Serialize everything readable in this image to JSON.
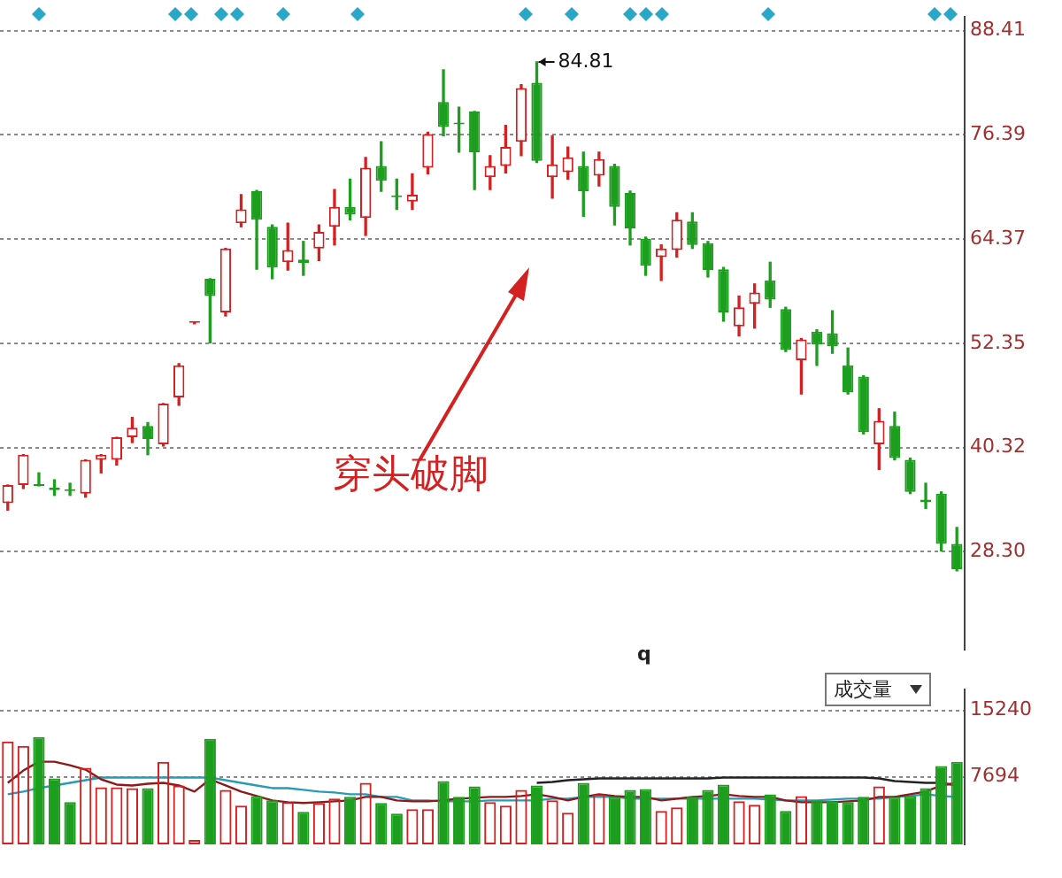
{
  "chart_data": [
    {
      "type": "candlestick",
      "categories": [
        null,
        null,
        null,
        null,
        null,
        null,
        null,
        null,
        null,
        null,
        null,
        null,
        null,
        null,
        null,
        null,
        null,
        null,
        null,
        null,
        null,
        null,
        null,
        null,
        null,
        null,
        null,
        null,
        null,
        null,
        null,
        null,
        null,
        null,
        null,
        null,
        null,
        null,
        null,
        null,
        null,
        null,
        null,
        null,
        null,
        null,
        null,
        null,
        null,
        null,
        null,
        null,
        null,
        null,
        null,
        null,
        null,
        null,
        null,
        null,
        null,
        null
      ],
      "ohlc": [
        [
          33.9,
          36.0,
          33.1,
          36.0
        ],
        [
          36.0,
          39.5,
          35.6,
          39.5
        ],
        [
          36.0,
          37.4,
          35.9,
          35.9
        ],
        [
          35.7,
          36.6,
          34.8,
          35.4
        ],
        [
          35.4,
          36.2,
          34.8,
          35.3
        ],
        [
          35.0,
          38.9,
          34.6,
          38.9
        ],
        [
          38.9,
          39.5,
          37.4,
          39.5
        ],
        [
          38.9,
          41.5,
          38.3,
          41.5
        ],
        [
          41.5,
          43.8,
          40.9,
          42.6
        ],
        [
          42.8,
          43.2,
          39.5,
          41.3
        ],
        [
          40.7,
          45.4,
          40.5,
          45.4
        ],
        [
          46.1,
          50.0,
          45.2,
          49.8
        ],
        [
          54.7,
          54.8,
          54.6,
          54.7
        ],
        [
          59.8,
          59.8,
          52.4,
          57.8
        ],
        [
          55.9,
          63.3,
          55.5,
          63.3
        ],
        [
          66.2,
          69.5,
          65.8,
          67.8
        ],
        [
          69.9,
          70.0,
          60.9,
          66.6
        ],
        [
          65.8,
          66.0,
          59.8,
          61.1
        ],
        [
          61.7,
          66.2,
          60.8,
          63.1
        ],
        [
          62.0,
          64.1,
          60.2,
          61.6
        ],
        [
          63.3,
          66.0,
          61.9,
          65.2
        ],
        [
          65.8,
          70.1,
          63.7,
          68.1
        ],
        [
          68.1,
          71.3,
          66.6,
          67.2
        ],
        [
          66.8,
          73.8,
          64.8,
          72.6
        ],
        [
          72.8,
          75.6,
          69.9,
          71.1
        ],
        [
          69.4,
          71.3,
          67.8,
          69.2
        ],
        [
          68.7,
          71.9,
          67.8,
          69.5
        ],
        [
          72.6,
          76.7,
          71.9,
          76.5
        ],
        [
          80.2,
          83.9,
          76.3,
          77.3
        ],
        [
          77.8,
          79.6,
          74.4,
          77.6
        ],
        [
          79.1,
          79.1,
          70.1,
          74.4
        ],
        [
          71.5,
          74.0,
          70.1,
          72.8
        ],
        [
          72.8,
          77.5,
          72.0,
          75.0
        ],
        [
          75.6,
          82.2,
          74.0,
          81.8
        ],
        [
          82.4,
          84.81,
          73.2,
          73.4
        ],
        [
          71.5,
          76.3,
          69.1,
          73.0
        ],
        [
          72.1,
          75.0,
          71.3,
          73.8
        ],
        [
          72.8,
          74.4,
          67.0,
          69.9
        ],
        [
          71.7,
          74.4,
          70.5,
          73.6
        ],
        [
          72.8,
          73.0,
          66.0,
          68.1
        ],
        [
          69.7,
          69.9,
          63.7,
          65.6
        ],
        [
          64.4,
          64.6,
          60.2,
          61.3
        ],
        [
          62.3,
          63.7,
          59.6,
          63.3
        ],
        [
          63.1,
          67.4,
          62.3,
          66.6
        ],
        [
          66.4,
          67.4,
          63.3,
          63.7
        ],
        [
          63.9,
          64.1,
          60.0,
          60.8
        ],
        [
          60.9,
          61.1,
          54.9,
          55.9
        ],
        [
          54.3,
          57.8,
          53.2,
          56.5
        ],
        [
          56.9,
          59.2,
          54.1,
          58.2
        ],
        [
          59.6,
          61.7,
          56.5,
          57.4
        ],
        [
          56.3,
          56.5,
          51.4,
          51.6
        ],
        [
          50.4,
          52.9,
          46.5,
          52.8
        ],
        [
          53.7,
          53.9,
          49.8,
          52.2
        ],
        [
          53.5,
          56.1,
          51.2,
          52.0
        ],
        [
          49.8,
          51.8,
          46.5,
          46.7
        ],
        [
          48.5,
          48.6,
          41.9,
          42.1
        ],
        [
          40.7,
          44.8,
          37.8,
          43.4
        ],
        [
          42.8,
          44.4,
          38.9,
          39.1
        ],
        [
          38.9,
          39.1,
          35.0,
          35.2
        ],
        [
          34.3,
          36.2,
          33.3,
          34.0
        ],
        [
          35.0,
          35.2,
          28.4,
          29.2
        ],
        [
          29.2,
          31.1,
          26.1,
          26.3
        ]
      ],
      "colors": [
        "#d42020",
        "#d42020",
        "#1e9e1e",
        "#1e9e1e",
        "#1e9e1e",
        "#d42020",
        "#d42020",
        "#d42020",
        "#d42020",
        "#1e9e1e",
        "#d42020",
        "#d42020",
        "#d42020",
        "#1e9e1e",
        "#d42020",
        "#d42020",
        "#1e9e1e",
        "#1e9e1e",
        "#d42020",
        "#1e9e1e",
        "#d42020",
        "#d42020",
        "#1e9e1e",
        "#d42020",
        "#1e9e1e",
        "#1e9e1e",
        "#d42020",
        "#d42020",
        "#1e9e1e",
        "#1e9e1e",
        "#1e9e1e",
        "#d42020",
        "#d42020",
        "#d42020",
        "#1e9e1e",
        "#d42020",
        "#d42020",
        "#1e9e1e",
        "#d42020",
        "#1e9e1e",
        "#1e9e1e",
        "#1e9e1e",
        "#d42020",
        "#d42020",
        "#1e9e1e",
        "#1e9e1e",
        "#1e9e1e",
        "#d42020",
        "#d42020",
        "#1e9e1e",
        "#1e9e1e",
        "#d42020",
        "#1e9e1e",
        "#1e9e1e",
        "#1e9e1e",
        "#1e9e1e",
        "#d42020",
        "#1e9e1e",
        "#1e9e1e",
        "#1e9e1e",
        "#1e9e1e",
        "#1e9e1e"
      ],
      "ylim": [
        17,
        90
      ],
      "yticks": [
        {
          "value": 28.3,
          "label": "28.30"
        },
        40.32,
        52.35,
        64.37,
        76.39,
        88.41
      ],
      "grid": "y",
      "tick_labels": "y",
      "annotations": [
        "84.81",
        "穿头破脚",
        "q"
      ]
    },
    {
      "type": "bar",
      "title": "成交量",
      "categories": [
        null,
        null,
        null,
        null,
        null,
        null,
        null,
        null,
        null,
        null,
        null,
        null,
        null,
        null,
        null,
        null,
        null,
        null,
        null,
        null,
        null,
        null,
        null,
        null,
        null,
        null,
        null,
        null,
        null,
        null,
        null,
        null,
        null,
        null,
        null,
        null,
        null,
        null,
        null,
        null,
        null,
        null,
        null,
        null,
        null,
        null,
        null,
        null,
        null,
        null,
        null,
        null,
        null,
        null,
        null,
        null,
        null,
        null,
        null,
        null,
        null,
        null
      ],
      "series": [
        {
          "values": [
            11700,
            11200,
            12200,
            7500,
            4800,
            8700,
            6500,
            6500,
            6400,
            6400,
            9400,
            6700,
            500,
            12000,
            6200,
            4400,
            5500,
            5000,
            4800,
            3700,
            4700,
            5200,
            5400,
            7000,
            4700,
            3500,
            4000,
            4000,
            7200,
            5400,
            6600,
            4800,
            4400,
            6200,
            6700,
            5000,
            3600,
            7000,
            5700,
            5400,
            6200,
            6300,
            3800,
            4200,
            5400,
            6200,
            6800,
            4900,
            4500,
            5700,
            3800,
            5500,
            5000,
            4900,
            4800,
            5400,
            6600,
            5400,
            5500,
            6400,
            8900,
            9400
          ],
          "colors": [
            "#d42020",
            "#d42020",
            "#1e9e1e",
            "#1e9e1e",
            "#1e9e1e",
            "#d42020",
            "#d42020",
            "#d42020",
            "#d42020",
            "#1e9e1e",
            "#d42020",
            "#d42020",
            "#d42020",
            "#1e9e1e",
            "#d42020",
            "#d42020",
            "#1e9e1e",
            "#1e9e1e",
            "#d42020",
            "#1e9e1e",
            "#d42020",
            "#d42020",
            "#1e9e1e",
            "#d42020",
            "#1e9e1e",
            "#1e9e1e",
            "#d42020",
            "#d42020",
            "#1e9e1e",
            "#1e9e1e",
            "#1e9e1e",
            "#d42020",
            "#d42020",
            "#d42020",
            "#1e9e1e",
            "#d42020",
            "#d42020",
            "#1e9e1e",
            "#d42020",
            "#1e9e1e",
            "#1e9e1e",
            "#1e9e1e",
            "#d42020",
            "#d42020",
            "#1e9e1e",
            "#1e9e1e",
            "#1e9e1e",
            "#d42020",
            "#d42020",
            "#1e9e1e",
            "#1e9e1e",
            "#d42020",
            "#1e9e1e",
            "#1e9e1e",
            "#1e9e1e",
            "#1e9e1e",
            "#d42020",
            "#1e9e1e",
            "#1e9e1e",
            "#1e9e1e",
            "#1e9e1e",
            "#1e9e1e"
          ]
        },
        {
          "type": "line",
          "color": "#8b1a1a",
          "values": [
            7000,
            8400,
            9400,
            9400,
            9000,
            8500,
            7400,
            6800,
            6700,
            6900,
            7000,
            6700,
            6000,
            7400,
            6700,
            6000,
            5500,
            5000,
            4800,
            4700,
            4800,
            4900,
            5000,
            5400,
            5400,
            5000,
            4900,
            4900,
            5000,
            5200,
            5300,
            5400,
            5400,
            5500,
            5700,
            5400,
            5000,
            5400,
            5700,
            5500,
            5400,
            5400,
            5000,
            5200,
            5400,
            5500,
            5700,
            5500,
            5400,
            5400,
            5000,
            4800,
            4800,
            4800,
            4900,
            5000,
            5400,
            5400,
            5700,
            6000,
            6700,
            7000
          ]
        },
        {
          "type": "line",
          "color": "#2a9bb5",
          "values": [
            5700,
            6000,
            6400,
            6700,
            7000,
            7300,
            7600,
            7600,
            7600,
            7600,
            7600,
            7600,
            7600,
            7600,
            7300,
            7000,
            6700,
            6400,
            6400,
            6200,
            6000,
            5900,
            5700,
            5700,
            5400,
            5400,
            5000,
            5000,
            4900,
            4900,
            4900,
            5000,
            5000,
            5000,
            5000,
            5200,
            5200,
            5400,
            5400,
            5400,
            5200,
            5200,
            5200,
            5200,
            5200,
            5200,
            5200,
            5200,
            5200,
            5100,
            5000,
            5000,
            5000,
            5100,
            5200,
            5200,
            5200,
            5400,
            5500,
            5700,
            5500,
            5400
          ]
        },
        {
          "type": "line",
          "color": "#222222",
          "values": [
            null,
            null,
            null,
            null,
            null,
            null,
            null,
            null,
            null,
            null,
            null,
            null,
            null,
            null,
            null,
            null,
            null,
            null,
            null,
            null,
            null,
            null,
            null,
            null,
            null,
            null,
            null,
            null,
            null,
            null,
            null,
            null,
            null,
            null,
            7000,
            7100,
            7300,
            7400,
            7500,
            7500,
            7500,
            7500,
            7500,
            7500,
            7500,
            7500,
            7600,
            7600,
            7600,
            7600,
            7600,
            7600,
            7600,
            7600,
            7600,
            7600,
            7500,
            7200,
            7100,
            7000,
            7000,
            6700
          ]
        }
      ],
      "ylim": [
        0,
        17600
      ],
      "yticks": [
        7694,
        15240
      ],
      "grid": "y",
      "tick_labels": "y",
      "marker": "none"
    }
  ]
}
